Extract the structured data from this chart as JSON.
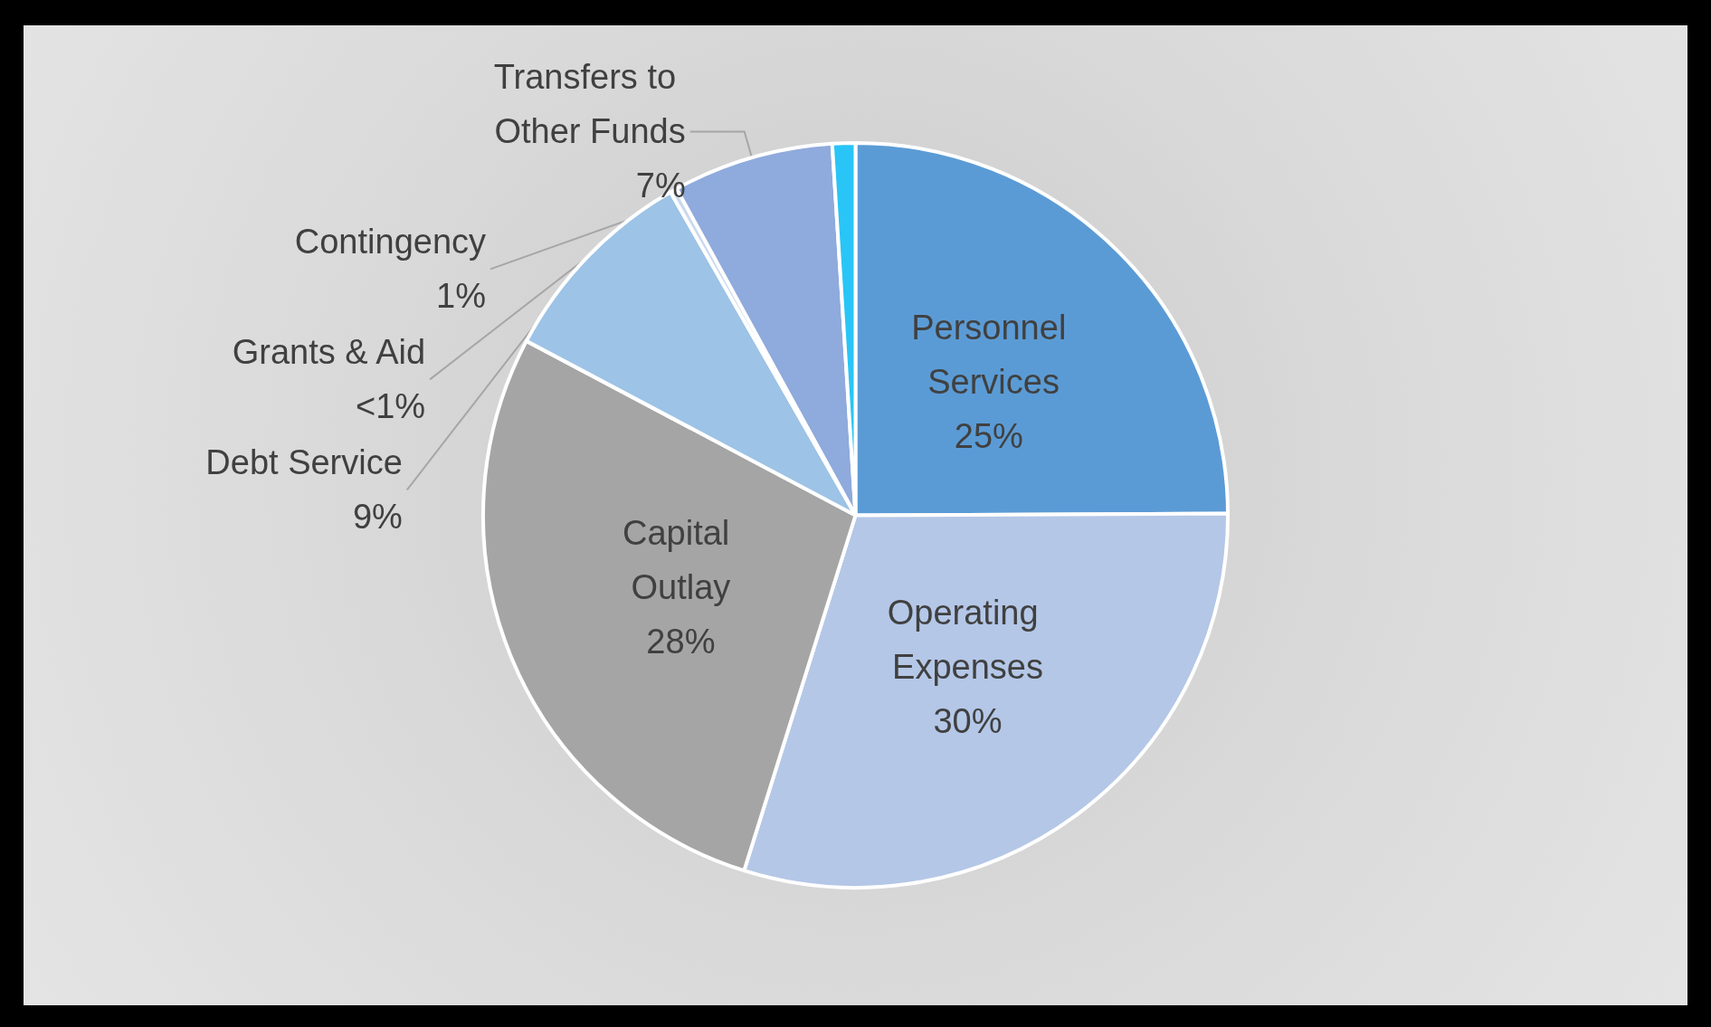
{
  "chart_data": {
    "type": "pie",
    "categories": [
      "Personnel Services",
      "Operating Expenses",
      "Capital Outlay",
      "Debt Service",
      "Grants & Aid",
      "Transfers to Other Funds",
      "Contingency"
    ],
    "values": [
      25,
      30,
      28,
      9,
      0.3,
      7,
      1
    ],
    "value_labels": [
      "25%",
      "30%",
      "28%",
      "9%",
      "<1%",
      "7%",
      "1%"
    ],
    "colors": [
      "#5b9bd5",
      "#b4c7e7",
      "#a5a5a5",
      "#9dc3e6",
      "#c9d9ee",
      "#8faadc",
      "#29c5f6"
    ],
    "legend": false
  }
}
